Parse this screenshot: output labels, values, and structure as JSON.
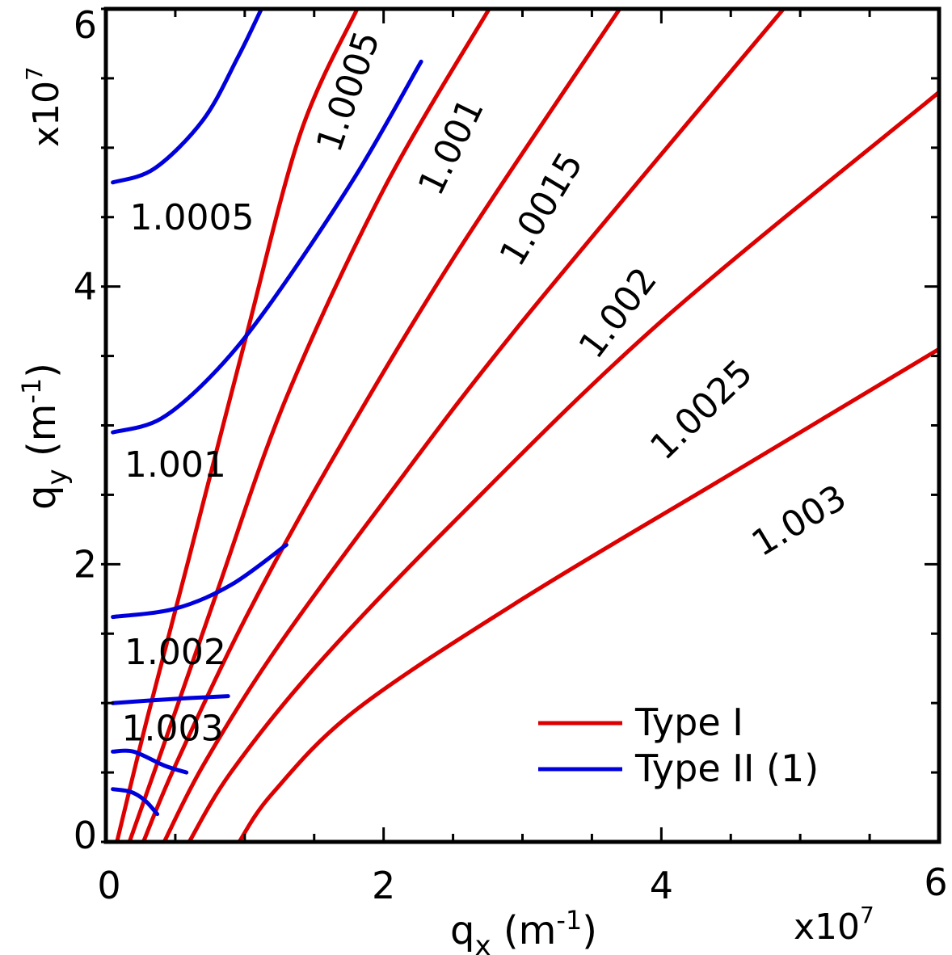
{
  "chart_data": {
    "type": "line",
    "xlabel": "q",
    "xlabel_sub": "x",
    "xlabel_unit_open": " (m",
    "xlabel_unit_sup": "-1",
    "xlabel_unit_close": ")",
    "ylabel": "q",
    "ylabel_sub": "y",
    "ylabel_unit_open": " (m",
    "ylabel_unit_sup": "-1",
    "ylabel_unit_close": ")",
    "x_multiplier_base": "x10",
    "x_multiplier_exp": "7",
    "y_multiplier_base": "x10",
    "y_multiplier_exp": "7",
    "xlim": [
      0,
      6
    ],
    "ylim": [
      0,
      6
    ],
    "x_ticks": [
      {
        "value": 0,
        "label": "0"
      },
      {
        "value": 2,
        "label": "2"
      },
      {
        "value": 4,
        "label": "4"
      },
      {
        "value": 6,
        "label": "6"
      }
    ],
    "y_ticks": [
      {
        "value": 0,
        "label": "0"
      },
      {
        "value": 2,
        "label": "2"
      },
      {
        "value": 4,
        "label": "4"
      },
      {
        "value": 6,
        "label": "6"
      }
    ],
    "x_minor_ticks": [
      0.5,
      1,
      1.5,
      2.5,
      3,
      3.5,
      4.5,
      5,
      5.5
    ],
    "y_minor_ticks": [
      0.5,
      1,
      1.5,
      2.5,
      3,
      3.5,
      4.5,
      5,
      5.5
    ],
    "grid": false,
    "legend_position": "bottom-right",
    "legend": [
      {
        "label": "Type I",
        "color": "#dd0000"
      },
      {
        "label": "Type II (1)",
        "color": "#0000dd"
      }
    ],
    "series": [
      {
        "group": "Type I",
        "label": "1.0005",
        "color": "#dd0000",
        "label_at": [
          1.76,
          5.4
        ],
        "label_angle": -71,
        "points": [
          [
            0.08,
            0
          ],
          [
            0.3,
            0.9
          ],
          [
            0.6,
            2.05
          ],
          [
            1.0,
            3.6
          ],
          [
            1.4,
            5.1
          ],
          [
            1.81,
            6.0
          ]
        ]
      },
      {
        "group": "Type I",
        "label": "1.001",
        "color": "#dd0000",
        "label_at": [
          2.5,
          5.0
        ],
        "label_angle": -64,
        "points": [
          [
            0.17,
            0
          ],
          [
            0.4,
            0.65
          ],
          [
            0.8,
            1.8
          ],
          [
            1.3,
            3.2
          ],
          [
            2.0,
            4.7
          ],
          [
            2.76,
            6.0
          ]
        ]
      },
      {
        "group": "Type I",
        "label": "1.0015",
        "color": "#dd0000",
        "label_at": [
          3.15,
          4.55
        ],
        "label_angle": -59,
        "points": [
          [
            0.27,
            0
          ],
          [
            0.5,
            0.55
          ],
          [
            1.0,
            1.6
          ],
          [
            1.6,
            2.7
          ],
          [
            2.5,
            4.2
          ],
          [
            3.7,
            6.0
          ]
        ]
      },
      {
        "group": "Type I",
        "label": "1.002",
        "color": "#dd0000",
        "label_at": [
          3.7,
          3.8
        ],
        "label_angle": -53,
        "points": [
          [
            0.42,
            0
          ],
          [
            0.7,
            0.55
          ],
          [
            1.2,
            1.35
          ],
          [
            2.0,
            2.45
          ],
          [
            3.0,
            3.75
          ],
          [
            4.88,
            6.0
          ]
        ]
      },
      {
        "group": "Type I",
        "label": "1.0025",
        "color": "#dd0000",
        "label_at": [
          4.3,
          3.1
        ],
        "label_angle": -44,
        "points": [
          [
            0.6,
            0
          ],
          [
            0.9,
            0.5
          ],
          [
            1.5,
            1.25
          ],
          [
            2.5,
            2.3
          ],
          [
            4.0,
            3.75
          ],
          [
            6.0,
            5.4
          ]
        ]
      },
      {
        "group": "Type I",
        "label": "1.003",
        "color": "#dd0000",
        "label_at": [
          5.0,
          2.3
        ],
        "label_angle": -31,
        "points": [
          [
            0.96,
            0
          ],
          [
            1.2,
            0.35
          ],
          [
            1.8,
            0.95
          ],
          [
            3.0,
            1.75
          ],
          [
            4.5,
            2.65
          ],
          [
            6.0,
            3.55
          ]
        ]
      },
      {
        "group": "Type II (1)",
        "label": "1.0005",
        "color": "#0000dd",
        "label_at": [
          0.62,
          4.48
        ],
        "label_angle": 0,
        "points": [
          [
            0.05,
            4.75
          ],
          [
            0.35,
            4.85
          ],
          [
            0.7,
            5.2
          ],
          [
            0.95,
            5.65
          ],
          [
            1.12,
            6.0
          ]
        ]
      },
      {
        "group": "Type II (1)",
        "label": "",
        "color": "#0000dd",
        "points": [
          [
            0.05,
            2.95
          ],
          [
            0.4,
            3.05
          ],
          [
            0.8,
            3.4
          ],
          [
            1.2,
            3.9
          ],
          [
            1.8,
            4.8
          ],
          [
            2.27,
            5.62
          ]
        ]
      },
      {
        "group": "Type II (1)",
        "label": "1.001",
        "color": "#0000dd",
        "label_at": [
          0.5,
          2.7
        ],
        "label_angle": 0,
        "points": []
      },
      {
        "group": "Type II (1)",
        "label": "1.002",
        "color": "#0000dd",
        "label_at": [
          0.5,
          1.35
        ],
        "label_angle": 0,
        "points": [
          [
            0.05,
            1.62
          ],
          [
            0.5,
            1.68
          ],
          [
            0.9,
            1.85
          ],
          [
            1.3,
            2.14
          ]
        ]
      },
      {
        "group": "Type II (1)",
        "label": "1.003",
        "color": "#0000dd",
        "label_at": [
          0.48,
          0.8
        ],
        "label_angle": 0,
        "points": [
          [
            0.05,
            1.0
          ],
          [
            0.5,
            1.03
          ],
          [
            0.88,
            1.05
          ]
        ]
      },
      {
        "group": "Type II (1)",
        "label": "",
        "color": "#0000dd",
        "points": [
          [
            0.05,
            0.65
          ],
          [
            0.2,
            0.65
          ],
          [
            0.42,
            0.55
          ],
          [
            0.58,
            0.5
          ]
        ]
      },
      {
        "group": "Type II (1)",
        "label": "",
        "color": "#0000dd",
        "points": [
          [
            0.05,
            0.38
          ],
          [
            0.18,
            0.36
          ],
          [
            0.28,
            0.3
          ],
          [
            0.37,
            0.2
          ]
        ]
      }
    ]
  }
}
